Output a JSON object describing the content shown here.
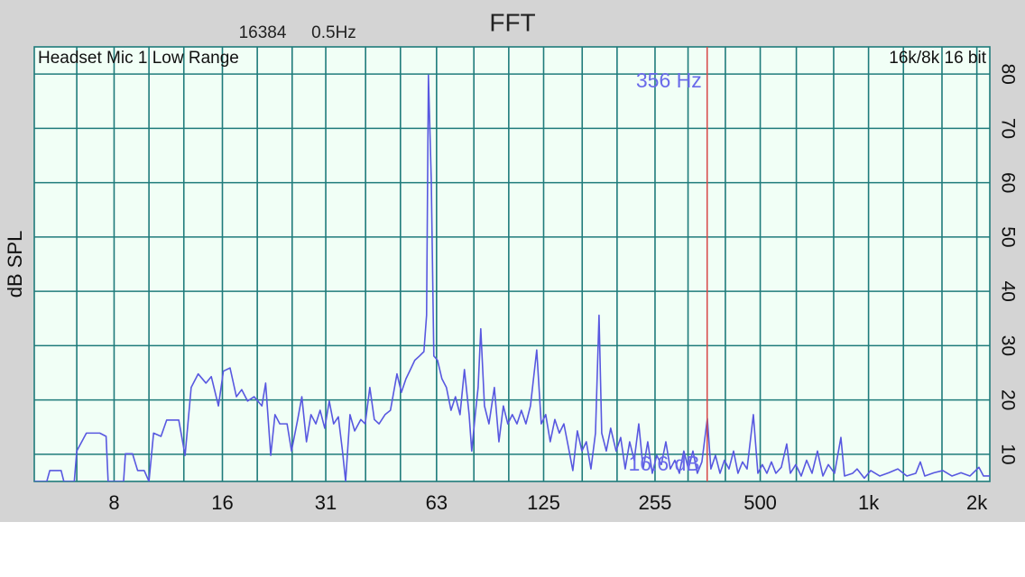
{
  "chart_data": {
    "type": "line",
    "title": "FFT",
    "fft_size": "16384",
    "resolution": "0.5Hz",
    "source": "Headset Mic 1 Low Range",
    "format": "16k/8k 16 bit",
    "ylabel": "dB SPL",
    "xscale": "log",
    "xlim": [
      4.8,
      2173
    ],
    "ylim": [
      5,
      85
    ],
    "xticks": [
      8,
      16,
      31,
      63,
      125,
      255,
      500,
      {
        "value": 1000,
        "label": "1k"
      },
      {
        "value": 2000,
        "label": "2k"
      }
    ],
    "x_minor_ticks": [
      6.3,
      10,
      12.5,
      20,
      25,
      40,
      50,
      80,
      100,
      160,
      200,
      315,
      400,
      630,
      800,
      1250,
      1600
    ],
    "yticks": [
      10,
      20,
      30,
      40,
      50,
      60,
      70,
      80
    ],
    "grid": true,
    "grid_color": "#1f7b7b",
    "plot_background": "#f1fff6",
    "color": "#5858e0",
    "cursor": {
      "frequency": 356,
      "frequency_label": "356 Hz",
      "level_label": "16.6 dB",
      "color": "#d84848",
      "label_color": "#6a6aea"
    },
    "x": [
      4.8,
      5.2,
      5.3,
      5.7,
      5.8,
      6.2,
      6.3,
      6.7,
      7.3,
      7.6,
      7.7,
      8.5,
      8.6,
      9.0,
      9.3,
      9.7,
      10.0,
      10.3,
      10.8,
      11.2,
      12.1,
      12.6,
      13.1,
      13.7,
      14.4,
      14.9,
      15.6,
      16.1,
      16.8,
      17.5,
      18.1,
      18.8,
      19.6,
      20.6,
      21.1,
      21.8,
      22.4,
      23.1,
      24.2,
      24.9,
      25.9,
      26.6,
      27.4,
      28.2,
      29.1,
      29.9,
      30.8,
      31.7,
      32.6,
      33.6,
      34.5,
      35.2,
      36.2,
      37.3,
      38.8,
      39.9,
      41.1,
      42.3,
      43.6,
      45.3,
      46.9,
      48.9,
      50.3,
      51.8,
      53.3,
      54.8,
      56.5,
      58.1,
      59.1,
      59.8,
      60.9,
      61.9,
      63.4,
      65.2,
      67.1,
      69.1,
      71.1,
      73.2,
      75.3,
      77.6,
      78.9,
      80.7,
      82.2,
      83.6,
      85.6,
      88.1,
      91.2,
      93.9,
      96.6,
      99.4,
      102.3,
      105.4,
      108.4,
      111.6,
      114.9,
      119.6,
      123.1,
      126.7,
      130.4,
      134.3,
      138.2,
      142.3,
      146.4,
      150.7,
      155.1,
      159.7,
      164.3,
      169.2,
      174.2,
      178.2,
      181.3,
      186.7,
      192.0,
      198.8,
      204.7,
      210.7,
      216.8,
      223.2,
      229.8,
      236.4,
      243.4,
      250.6,
      257.8,
      265.5,
      273.3,
      281.2,
      289.5,
      298.0,
      306.6,
      315.7,
      325.0,
      334.3,
      344.2,
      356.4,
      364.6,
      375.4,
      386.5,
      397.6,
      409.4,
      421.5,
      433.6,
      446.4,
      459.6,
      478.5,
      492.5,
      506.8,
      521.8,
      537.1,
      552.6,
      572.2,
      592.4,
      606.3,
      627.7,
      649.9,
      672.8,
      696.6,
      721.2,
      746.6,
      773.0,
      804.5,
      837.9,
      857.4,
      903.4,
      929.3,
      973.4,
      1014,
      1074,
      1138,
      1206,
      1278,
      1353,
      1393,
      1433,
      1520,
      1609,
      1705,
      1807,
      1914,
      2027,
      2087,
      2173
    ],
    "values": [
      5,
      5,
      7.0,
      7.0,
      5,
      5,
      10.6,
      13.9,
      13.9,
      13.3,
      5,
      5,
      10.1,
      10.1,
      7.0,
      7.0,
      5,
      13.9,
      13.3,
      16.3,
      16.3,
      9.8,
      22.3,
      24.8,
      23.1,
      24.3,
      18.9,
      25.3,
      25.9,
      20.6,
      21.9,
      19.8,
      20.6,
      18.9,
      23.1,
      9.8,
      17.3,
      15.6,
      15.6,
      10.6,
      16.4,
      20.6,
      12.3,
      17.3,
      15.6,
      18.1,
      14.8,
      19.8,
      15.6,
      16.9,
      10.6,
      5,
      17.3,
      14.3,
      16.4,
      15.6,
      22.3,
      16.4,
      15.6,
      17.3,
      18.1,
      24.8,
      21.4,
      23.9,
      25.6,
      27.3,
      28.1,
      28.9,
      35.6,
      79.8,
      60.5,
      28.1,
      27.3,
      23.9,
      22.3,
      18.1,
      20.6,
      17.3,
      25.6,
      17.3,
      10.6,
      17.3,
      22.3,
      33.1,
      18.9,
      15.6,
      22.3,
      12.3,
      18.9,
      15.6,
      17.3,
      15.6,
      18.1,
      15.6,
      18.9,
      29.2,
      15.6,
      17.3,
      12.3,
      16.4,
      13.9,
      15.6,
      11.4,
      7.0,
      14.3,
      10.6,
      12.3,
      7.3,
      13.9,
      35.6,
      13.9,
      10.6,
      14.8,
      10.6,
      13.1,
      7.3,
      12.3,
      8.9,
      15.6,
      7.3,
      12.3,
      6.5,
      9.8,
      8.1,
      12.3,
      7.3,
      8.9,
      6.5,
      10.6,
      7.3,
      10.6,
      6.5,
      8.6,
      16.6,
      7.3,
      9.8,
      6.5,
      8.9,
      7.3,
      10.6,
      6.5,
      8.6,
      7.3,
      17.3,
      6.5,
      8.1,
      6.5,
      8.6,
      6.5,
      7.6,
      11.9,
      6.5,
      8.1,
      6.0,
      8.9,
      6.5,
      10.6,
      6.0,
      8.1,
      6.5,
      13.1,
      6.0,
      6.5,
      7.3,
      5.6,
      7.0,
      6.0,
      6.6,
      7.3,
      6.0,
      6.5,
      8.6,
      6.0,
      6.6,
      7.0,
      6.0,
      6.6,
      6.0,
      7.6,
      6.0,
      6.0
    ]
  }
}
